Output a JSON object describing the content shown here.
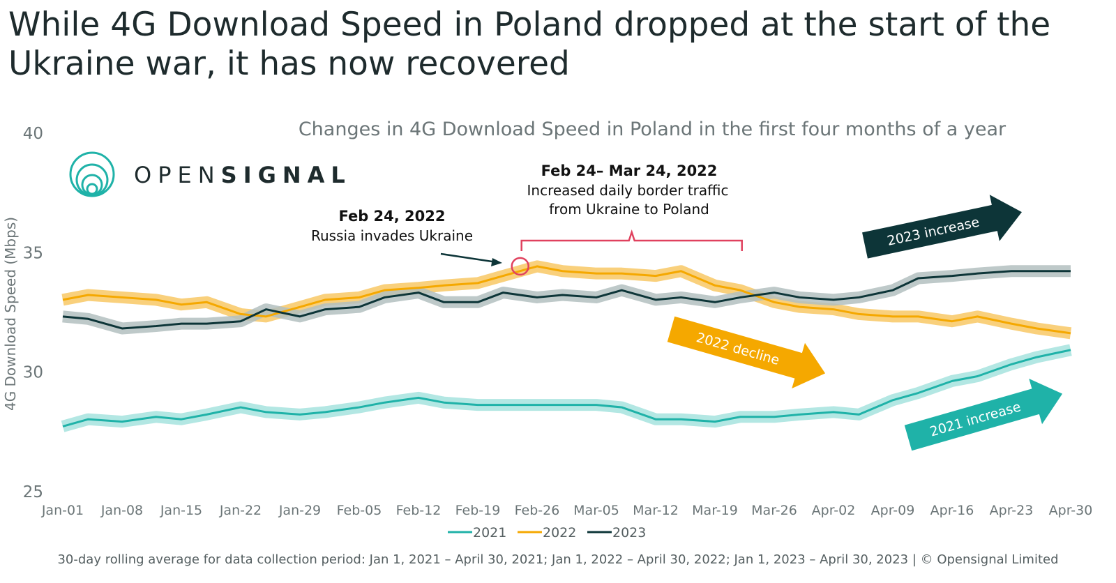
{
  "title": "While 4G Download Speed in Poland dropped at the start of the Ukraine war, it has now recovered",
  "logo": {
    "text_light": "OPEN",
    "text_bold": "SIGNAL",
    "icon": "opensignal-rings-logo"
  },
  "footer": "30-day rolling average for data collection period: Jan 1, 2021 – April 30, 2021; Jan 1, 2022 – April 30, 2022; Jan 1, 2023 – April 30, 2023 | © Opensignal Limited",
  "chart_data": {
    "type": "line",
    "title": "Changes in 4G Download Speed in Poland in the first four months of a year",
    "xlabel": "",
    "ylabel": "4G Download Speed (Mbps)",
    "ylim": [
      25,
      40
    ],
    "yticks": [
      25,
      30,
      35,
      40
    ],
    "xticks": [
      "Jan-01",
      "Jan-08",
      "Jan-15",
      "Jan-22",
      "Jan-29",
      "Feb-05",
      "Feb-12",
      "Feb-19",
      "Feb-26",
      "Mar-05",
      "Mar-12",
      "Mar-19",
      "Mar-26",
      "Apr-02",
      "Apr-09",
      "Apr-16",
      "Apr-23",
      "Apr-30"
    ],
    "grid": false,
    "legend_position": "bottom",
    "x": [
      "Jan-01",
      "Jan-04",
      "Jan-08",
      "Jan-12",
      "Jan-15",
      "Jan-18",
      "Jan-22",
      "Jan-25",
      "Jan-29",
      "Feb-01",
      "Feb-05",
      "Feb-08",
      "Feb-12",
      "Feb-15",
      "Feb-19",
      "Feb-22",
      "Feb-26",
      "Mar-01",
      "Mar-05",
      "Mar-08",
      "Mar-12",
      "Mar-15",
      "Mar-19",
      "Mar-22",
      "Mar-26",
      "Mar-29",
      "Apr-02",
      "Apr-05",
      "Apr-09",
      "Apr-12",
      "Apr-16",
      "Apr-19",
      "Apr-23",
      "Apr-26",
      "Apr-30"
    ],
    "series": [
      {
        "name": "2021",
        "color": "#1fb2a8",
        "band_color": "#a6e3de",
        "values": [
          27.7,
          28.0,
          27.9,
          28.1,
          28.0,
          28.2,
          28.5,
          28.3,
          28.2,
          28.3,
          28.5,
          28.7,
          28.9,
          28.7,
          28.6,
          28.6,
          28.6,
          28.6,
          28.6,
          28.5,
          28.0,
          28.0,
          27.9,
          28.1,
          28.1,
          28.2,
          28.3,
          28.2,
          28.8,
          29.1,
          29.6,
          29.8,
          30.3,
          30.6,
          30.9
        ]
      },
      {
        "name": "2022",
        "color": "#f5a800",
        "band_color": "#f8c865",
        "values": [
          33.0,
          33.2,
          33.1,
          33.0,
          32.8,
          32.9,
          32.4,
          32.3,
          32.7,
          33.0,
          33.1,
          33.4,
          33.5,
          33.6,
          33.7,
          34.0,
          34.4,
          34.2,
          34.1,
          34.1,
          34.0,
          34.2,
          33.6,
          33.4,
          32.9,
          32.7,
          32.6,
          32.4,
          32.3,
          32.3,
          32.1,
          32.3,
          32.0,
          31.8,
          31.6
        ]
      },
      {
        "name": "2023",
        "color": "#0d3538",
        "band_color": "#b3bfc0",
        "values": [
          32.3,
          32.2,
          31.8,
          31.9,
          32.0,
          32.0,
          32.1,
          32.6,
          32.3,
          32.6,
          32.7,
          33.1,
          33.3,
          32.9,
          32.9,
          33.3,
          33.1,
          33.2,
          33.1,
          33.4,
          33.0,
          33.1,
          32.9,
          33.1,
          33.3,
          33.1,
          33.0,
          33.1,
          33.4,
          33.9,
          34.0,
          34.1,
          34.2,
          34.2,
          34.2
        ]
      }
    ],
    "annotations": [
      {
        "label_bold": "Feb 24, 2022",
        "label": "Russia invades Ukraine",
        "x": "Feb-24",
        "y": 34.4,
        "marker_color": "#e0415e"
      },
      {
        "label_bold": "Feb 24– Mar 24, 2022",
        "label": "Increased daily border traffic",
        "label2": "from Ukraine to Poland",
        "x_start": "Feb-24",
        "x_end": "Mar-24",
        "bracket_color": "#e0415e"
      },
      {
        "label": "2023 increase",
        "color": "#0d3538"
      },
      {
        "label": "2022 decline",
        "color": "#f5a800"
      },
      {
        "label": "2021 increase",
        "color": "#1fb2a8"
      }
    ]
  }
}
